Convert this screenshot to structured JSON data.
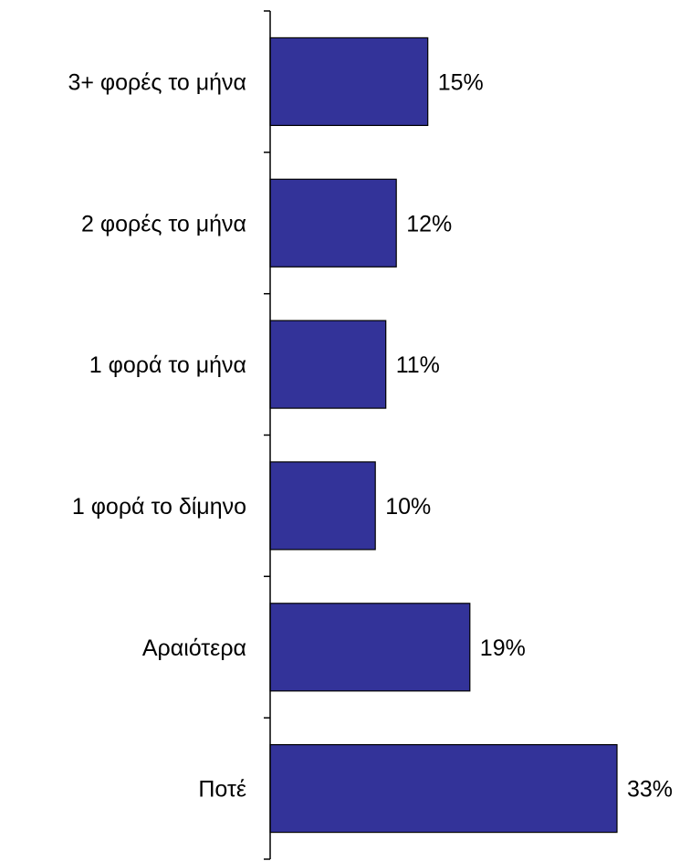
{
  "chart_data": {
    "type": "bar",
    "orientation": "horizontal",
    "categories": [
      "3+ φορές το μήνα",
      "2 φορές το μήνα",
      "1 φορά το μήνα",
      "1 φορά το δίμηνο",
      "Αραιότερα",
      "Ποτέ"
    ],
    "values": [
      15,
      12,
      11,
      10,
      19,
      33
    ],
    "value_labels": [
      "15%",
      "12%",
      "11%",
      "10%",
      "19%",
      "33%"
    ],
    "unit": "%",
    "title": "",
    "xlabel": "",
    "ylabel": "",
    "xlim": [
      0,
      33
    ],
    "grid": false,
    "legend": "none",
    "bar_color": "#333399",
    "bar_edge_color": "#000000",
    "axis_color": "#000000"
  }
}
